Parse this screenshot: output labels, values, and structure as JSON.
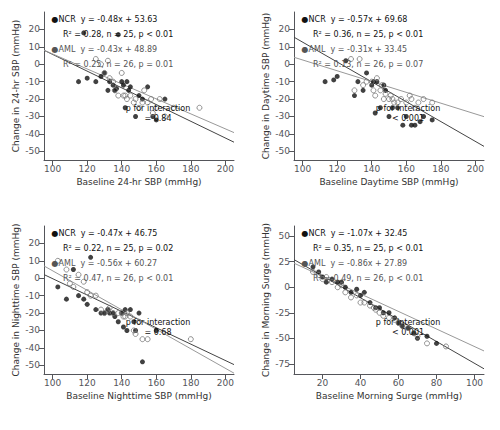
{
  "chart_data": [
    {
      "type": "scatter",
      "xlabel": "Baseline 24-hr SBP (mmHg)",
      "ylabel": "Change in 24-hr SBP (mmHg)",
      "xlim": [
        95,
        205
      ],
      "ylim": [
        -55,
        30
      ],
      "xticks": [
        100,
        120,
        140,
        160,
        180,
        200
      ],
      "yticks": [
        -50,
        -40,
        -30,
        -20,
        -10,
        0,
        10,
        20
      ],
      "grid": false,
      "series": [
        {
          "type": "scatter",
          "marker": "circle",
          "color": "#111111",
          "x": [
            115,
            118,
            120,
            125,
            128,
            130,
            132,
            133,
            135,
            136,
            137,
            138,
            140,
            141,
            142,
            143,
            144,
            145,
            148,
            150,
            152,
            155,
            158,
            160,
            165
          ],
          "values": [
            -10,
            18,
            -8,
            -10,
            -7,
            -5,
            -15,
            -10,
            -12,
            -15,
            -14,
            17,
            -10,
            -12,
            -25,
            -10,
            -15,
            -13,
            -30,
            -18,
            -20,
            -13,
            -30,
            -32,
            -20
          ]
        },
        {
          "type": "scatter",
          "marker": "open",
          "color": "#777777",
          "x": [
            125,
            128,
            130,
            132,
            133,
            135,
            136,
            138,
            140,
            141,
            142,
            143,
            145,
            147,
            148,
            150,
            152,
            153,
            155,
            157,
            158,
            160,
            162,
            165,
            170,
            185
          ],
          "values": [
            3,
            0,
            -5,
            2,
            -8,
            -10,
            -15,
            -18,
            -5,
            -18,
            -18,
            -20,
            -18,
            -22,
            -20,
            -25,
            -22,
            -15,
            -22,
            -20,
            -28,
            -25,
            -20,
            -30,
            -25,
            -25
          ]
        },
        {
          "type": "line",
          "color": "#444444",
          "x": [
            95,
            205
          ],
          "values": [
            8.03,
            -44.77
          ]
        },
        {
          "type": "line",
          "color": "#999999",
          "x": [
            95,
            205
          ],
          "values": [
            8.04,
            -39.26
          ]
        }
      ],
      "annotations": [
        {
          "text": "●NCR  y = -0.48x + 53.63",
          "color": "#111111"
        },
        {
          "text": "R² = 0.28, n = 25, p < 0.01",
          "color": "#111111"
        },
        {
          "text": "●AML  y = -0.43x + 48.89",
          "color": "#555555"
        },
        {
          "text": "R² = 0.25, n = 26, p = 0.01",
          "color": "#555555"
        },
        {
          "text": "p for interaction\n= 0.84",
          "color": "#111111"
        }
      ]
    },
    {
      "type": "scatter",
      "xlabel": "Baseline Daytime SBP (mmHg)",
      "ylabel": "Change in Daytime SBP (mmHg)",
      "xlim": [
        95,
        205
      ],
      "ylim": [
        -55,
        30
      ],
      "xticks": [
        100,
        120,
        140,
        160,
        180,
        200
      ],
      "yticks": [
        -50,
        -40,
        -30,
        -20,
        -10,
        0,
        10,
        20
      ],
      "grid": false,
      "series": [
        {
          "type": "scatter",
          "marker": "circle",
          "color": "#111111",
          "x": [
            113,
            118,
            120,
            125,
            130,
            132,
            135,
            137,
            140,
            141,
            142,
            143,
            145,
            147,
            148,
            150,
            152,
            155,
            158,
            160,
            163,
            165,
            168,
            170,
            175
          ],
          "values": [
            -10,
            -9,
            -7,
            2,
            -18,
            -10,
            -15,
            -5,
            -12,
            -10,
            -28,
            -10,
            -25,
            -12,
            -15,
            -30,
            -25,
            -25,
            -35,
            -30,
            -35,
            -35,
            -33,
            -30,
            -32
          ]
        },
        {
          "type": "scatter",
          "marker": "open",
          "color": "#777777",
          "x": [
            128,
            130,
            133,
            135,
            137,
            140,
            141,
            142,
            143,
            145,
            146,
            147,
            148,
            150,
            151,
            152,
            153,
            155,
            157,
            160,
            162,
            163,
            165,
            167,
            170,
            175
          ],
          "values": [
            3,
            -15,
            3,
            -12,
            -10,
            -10,
            -15,
            -18,
            -8,
            -15,
            -12,
            -20,
            -17,
            -20,
            -18,
            -20,
            -22,
            -22,
            -20,
            -22,
            -18,
            -20,
            -25,
            -22,
            -20,
            -22
          ]
        },
        {
          "type": "line",
          "color": "#444444",
          "x": [
            95,
            205
          ],
          "values": [
            15.53,
            -47.17
          ]
        },
        {
          "type": "line",
          "color": "#999999",
          "x": [
            95,
            205
          ],
          "values": [
            4.0,
            -30.1
          ]
        }
      ],
      "annotations": [
        {
          "text": "●NCR  y = -0.57x + 69.68",
          "color": "#111111"
        },
        {
          "text": "R² = 0.36, n = 25, p < 0.01",
          "color": "#111111"
        },
        {
          "text": "●AML  y = -0.31x + 33.45",
          "color": "#555555"
        },
        {
          "text": "R² = 0.13, n = 26, p = 0.07",
          "color": "#555555"
        },
        {
          "text": "p for interaction\n< 0.001",
          "color": "#111111"
        }
      ]
    },
    {
      "type": "scatter",
      "xlabel": "Baseline Nighttime SBP (mmHg)",
      "ylabel": "Change in Nighttime SBP (mmHg)",
      "xlim": [
        95,
        205
      ],
      "ylim": [
        -55,
        30
      ],
      "xticks": [
        100,
        120,
        140,
        160,
        180,
        200
      ],
      "yticks": [
        -50,
        -40,
        -30,
        -20,
        -10,
        0,
        10,
        20
      ],
      "grid": false,
      "series": [
        {
          "type": "scatter",
          "marker": "circle",
          "color": "#111111",
          "x": [
            103,
            108,
            112,
            115,
            118,
            120,
            122,
            125,
            128,
            130,
            132,
            133,
            135,
            136,
            138,
            140,
            141,
            142,
            143,
            145,
            147,
            148,
            150,
            152,
            160
          ],
          "values": [
            -5,
            -12,
            5,
            -10,
            -12,
            -15,
            12,
            -18,
            -20,
            -20,
            -18,
            -20,
            -20,
            -22,
            -25,
            -20,
            -28,
            -18,
            -30,
            -18,
            -25,
            -30,
            -20,
            -48,
            -30
          ]
        },
        {
          "type": "scatter",
          "marker": "open",
          "color": "#777777",
          "x": [
            103,
            108,
            110,
            112,
            115,
            118,
            120,
            122,
            125,
            128,
            130,
            132,
            133,
            135,
            138,
            140,
            141,
            142,
            143,
            145,
            147,
            148,
            150,
            152,
            155,
            180
          ],
          "values": [
            10,
            5,
            -3,
            -5,
            2,
            -2,
            -8,
            -10,
            -10,
            -18,
            -20,
            -18,
            -17,
            -20,
            -20,
            -20,
            -22,
            -22,
            -20,
            -22,
            -30,
            -32,
            -25,
            -35,
            -35,
            -35
          ]
        },
        {
          "type": "line",
          "color": "#444444",
          "x": [
            95,
            205
          ],
          "values": [
            2.1,
            -49.6
          ]
        },
        {
          "type": "line",
          "color": "#999999",
          "x": [
            95,
            205
          ],
          "values": [
            7.07,
            -54.53
          ]
        }
      ],
      "annotations": [
        {
          "text": "●NCR  y = -0.47x + 46.75",
          "color": "#111111"
        },
        {
          "text": "R² = 0.22, n = 25, p = 0.02",
          "color": "#111111"
        },
        {
          "text": "●AML  y = -0.56x + 60.27",
          "color": "#555555"
        },
        {
          "text": "R² = 0.47, n = 26, p < 0.01",
          "color": "#555555"
        },
        {
          "text": "p for interaction\n= 0.68",
          "color": "#111111"
        }
      ]
    },
    {
      "type": "scatter",
      "xlabel": "Baseline Morning Surge (mmHg)",
      "ylabel": "Change in Morning Surge (mmHg)",
      "xlim": [
        5,
        105
      ],
      "ylim": [
        -85,
        60
      ],
      "xticks": [
        20,
        40,
        60,
        80,
        100
      ],
      "yticks": [
        -75,
        -50,
        -25,
        0,
        25,
        50
      ],
      "grid": false,
      "series": [
        {
          "type": "scatter",
          "marker": "circle",
          "color": "#111111",
          "x": [
            15,
            18,
            20,
            22,
            25,
            28,
            30,
            32,
            35,
            38,
            40,
            42,
            45,
            48,
            50,
            52,
            55,
            58,
            60,
            62,
            65,
            68,
            70,
            75,
            80
          ],
          "values": [
            20,
            15,
            10,
            5,
            8,
            5,
            5,
            0,
            -5,
            -2,
            -8,
            -5,
            -15,
            -20,
            -20,
            -25,
            -25,
            -30,
            -35,
            -38,
            -40,
            -45,
            -50,
            -48,
            -55
          ]
        },
        {
          "type": "scatter",
          "marker": "open",
          "color": "#777777",
          "x": [
            15,
            18,
            20,
            22,
            25,
            28,
            30,
            32,
            35,
            38,
            40,
            42,
            45,
            47,
            48,
            50,
            52,
            55,
            58,
            60,
            62,
            65,
            68,
            70,
            75,
            85
          ],
          "values": [
            15,
            12,
            8,
            10,
            5,
            0,
            2,
            -5,
            -10,
            -8,
            -15,
            -15,
            -18,
            -20,
            -22,
            -25,
            -28,
            -30,
            -32,
            -35,
            -38,
            -40,
            -45,
            -48,
            -55,
            -58
          ]
        },
        {
          "type": "line",
          "color": "#444444",
          "x": [
            5,
            105
          ],
          "values": [
            27.1,
            -79.9
          ]
        },
        {
          "type": "line",
          "color": "#999999",
          "x": [
            5,
            105
          ],
          "values": [
            23.59,
            -62.41
          ]
        }
      ],
      "annotations": [
        {
          "text": "●NCR  y = -1.07x + 32.45",
          "color": "#111111"
        },
        {
          "text": "R² = 0.35, n = 25, p < 0.01",
          "color": "#111111"
        },
        {
          "text": "●AML  y = -0.86x + 27.89",
          "color": "#555555"
        },
        {
          "text": "R² = 0.49, n = 26, p < 0.01",
          "color": "#555555"
        },
        {
          "text": "p for interaction\n< 0.001",
          "color": "#111111"
        }
      ]
    }
  ]
}
